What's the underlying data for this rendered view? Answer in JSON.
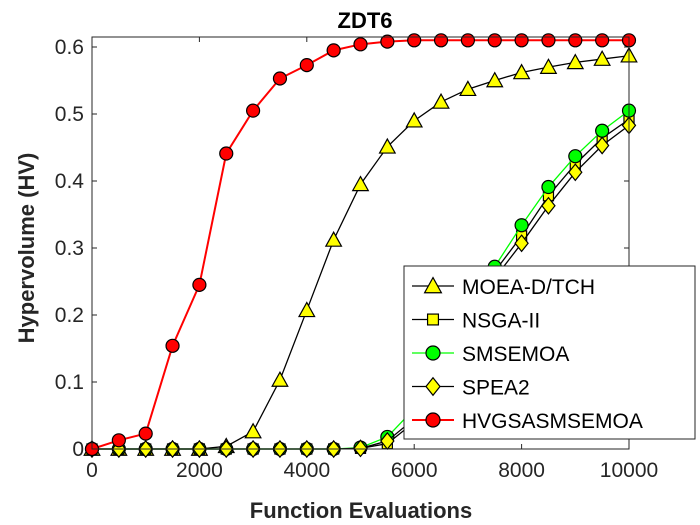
{
  "chart_data": {
    "type": "line",
    "title": "ZDT6",
    "xlabel": "Function Evaluations",
    "ylabel": "Hypervolume (HV)",
    "xlim": [
      0,
      10000
    ],
    "ylim": [
      0,
      0.6
    ],
    "xticks": [
      "0",
      "2000",
      "4000",
      "6000",
      "8000",
      "10000"
    ],
    "yticks": [
      "0",
      "0.1",
      "0.2",
      "0.3",
      "0.4",
      "0.5",
      "0.6"
    ],
    "grid": false,
    "legend_position": "lower-right",
    "x": [
      0,
      500,
      1000,
      1500,
      2000,
      2500,
      3000,
      3500,
      4000,
      4500,
      5000,
      5500,
      6000,
      6500,
      7000,
      7500,
      8000,
      8500,
      9000,
      9500,
      10000
    ],
    "series": [
      {
        "name": "MOEA-D/TCH",
        "marker": "triangle",
        "line_color": "#000000",
        "marker_fill": "#FFFF00",
        "values": [
          0,
          0,
          0,
          0,
          0,
          0.004,
          0.026,
          0.103,
          0.207,
          0.312,
          0.395,
          0.451,
          0.49,
          0.518,
          0.537,
          0.55,
          0.562,
          0.57,
          0.577,
          0.582,
          0.587
        ]
      },
      {
        "name": "NSGA-II",
        "marker": "square",
        "line_color": "#000000",
        "marker_fill": "#FFFF00",
        "values": [
          0,
          0,
          0,
          0,
          0,
          0,
          0,
          0,
          0,
          0,
          0.001,
          0.008,
          0.04,
          0.11,
          0.19,
          0.265,
          0.318,
          0.378,
          0.425,
          0.464,
          0.492
        ]
      },
      {
        "name": "SMSEMOA",
        "marker": "circle",
        "line_color": "#00FF00",
        "marker_fill": "#00FF00",
        "values": [
          0,
          0,
          0,
          0,
          0,
          0,
          0,
          0,
          0,
          0,
          0.002,
          0.018,
          0.06,
          0.13,
          0.205,
          0.272,
          0.334,
          0.391,
          0.437,
          0.475,
          0.505
        ]
      },
      {
        "name": "SPEA2",
        "marker": "diamond",
        "line_color": "#000000",
        "marker_fill": "#FFFF00",
        "values": [
          0,
          0,
          0,
          0,
          0,
          0,
          0,
          0,
          0,
          0,
          0.001,
          0.012,
          0.045,
          0.115,
          0.19,
          0.255,
          0.307,
          0.363,
          0.413,
          0.453,
          0.483
        ]
      },
      {
        "name": "HVGSASMSEMOA",
        "marker": "circle",
        "line_color": "#FF0000",
        "marker_fill": "#FF0000",
        "values": [
          0,
          0.013,
          0.023,
          0.154,
          0.245,
          0.441,
          0.505,
          0.553,
          0.573,
          0.595,
          0.604,
          0.608,
          0.61,
          0.61,
          0.61,
          0.61,
          0.61,
          0.61,
          0.61,
          0.61,
          0.61
        ]
      }
    ],
    "legend_entries": [
      "MOEA-D/TCH",
      "NSGA-II",
      "SMSEMOA",
      "SPEA2",
      "HVGSASMSEMOA"
    ]
  }
}
